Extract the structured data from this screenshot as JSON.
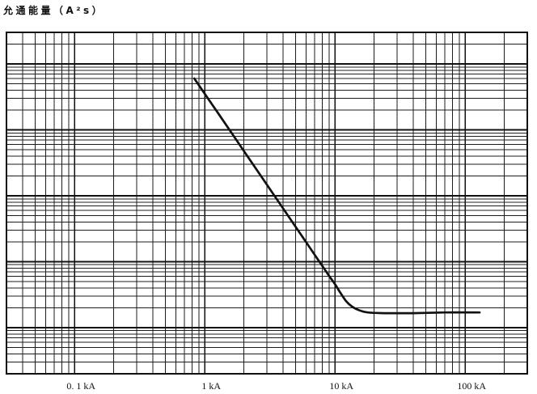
{
  "chart_data": {
    "type": "line",
    "ylabel": "允通能量（A²s）",
    "x_scale": "log",
    "y_scale": "log",
    "xlim": [
      0.03,
      300
    ],
    "ylim": [
      -0.7,
      4.48
    ],
    "x_ticks": [
      0.1,
      1,
      10,
      100
    ],
    "x_tick_labels": [
      "0. 1 kA",
      "1 kA",
      "10 kA",
      "100 kA"
    ],
    "grid": true,
    "series": [
      {
        "color": "#111111",
        "x": [
          0.83,
          1.27,
          1.95,
          3.0,
          4.61,
          7.08,
          8.77,
          10.0,
          11.0,
          12.2,
          13.5,
          15.1,
          17.9,
          23.9,
          39.4,
          69.8,
          129
        ],
        "y": [
          3.78,
          3.25,
          2.71,
          2.17,
          1.63,
          1.09,
          0.82,
          0.66,
          0.53,
          0.4,
          0.32,
          0.27,
          0.23,
          0.22,
          0.22,
          0.23,
          0.23
        ]
      }
    ]
  }
}
